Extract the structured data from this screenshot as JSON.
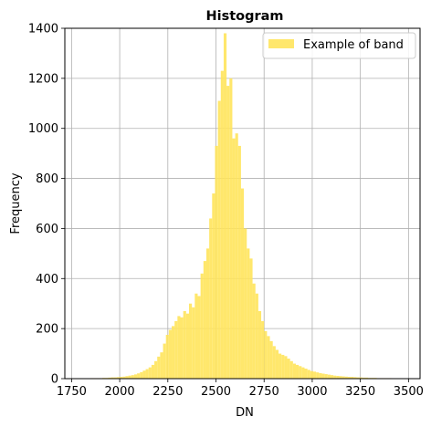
{
  "chart_data": {
    "type": "bar",
    "title": "Histogram",
    "xlabel": "DN",
    "ylabel": "Frequency",
    "xlim": [
      1715,
      3560
    ],
    "ylim": [
      0,
      1400
    ],
    "xticks": [
      1750,
      2000,
      2250,
      2500,
      2750,
      3000,
      3250,
      3500
    ],
    "yticks": [
      0,
      200,
      400,
      600,
      800,
      1000,
      1200,
      1400
    ],
    "grid": true,
    "legend_position": "top-right",
    "bin_start": 1760,
    "bin_width": 15,
    "series": [
      {
        "name": "Example of band",
        "color": "#ffe45c",
        "values": [
          1,
          0,
          1,
          1,
          1,
          1,
          2,
          2,
          2,
          2,
          3,
          3,
          4,
          5,
          5,
          6,
          7,
          8,
          10,
          12,
          14,
          17,
          21,
          26,
          32,
          38,
          45,
          55,
          70,
          88,
          105,
          140,
          175,
          195,
          210,
          230,
          250,
          245,
          270,
          260,
          300,
          285,
          340,
          330,
          420,
          470,
          520,
          640,
          740,
          930,
          1110,
          1230,
          1380,
          1170,
          1200,
          960,
          980,
          930,
          760,
          600,
          520,
          480,
          380,
          340,
          270,
          230,
          190,
          170,
          150,
          130,
          115,
          100,
          95,
          90,
          80,
          70,
          60,
          55,
          50,
          45,
          40,
          35,
          30,
          28,
          25,
          22,
          20,
          18,
          16,
          14,
          12,
          11,
          10,
          9,
          8,
          7,
          7,
          6,
          5,
          5,
          4,
          4,
          3,
          3,
          3,
          2,
          2,
          2,
          2,
          2,
          1,
          1,
          1,
          1,
          1,
          1
        ]
      }
    ]
  }
}
